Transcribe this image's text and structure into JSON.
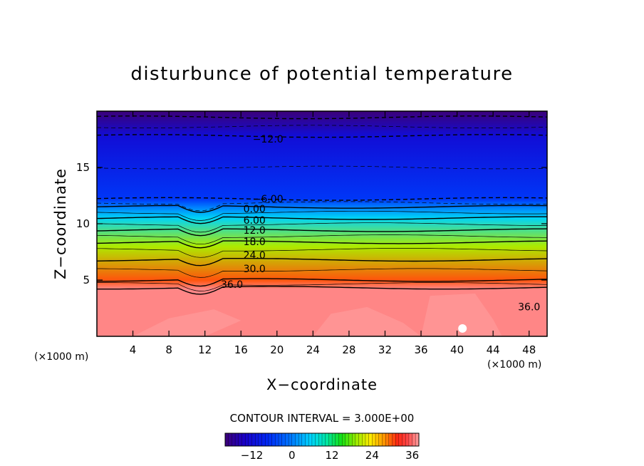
{
  "chart_data": {
    "type": "heatmap",
    "title": "disturbunce of potential temperature",
    "xlabel": "X−coordinate",
    "ylabel": "Z−coordinate",
    "x_unit": "(×1000 m)",
    "y_unit": "(×1000 m)",
    "xlim": [
      0,
      50
    ],
    "ylim": [
      0,
      20
    ],
    "x_ticks": [
      4,
      8,
      12,
      16,
      20,
      24,
      28,
      32,
      36,
      40,
      44,
      48
    ],
    "x_tick_labels": [
      "4",
      "8",
      "12",
      "16",
      "20",
      "24",
      "28",
      "32",
      "36",
      "40",
      "44",
      "48"
    ],
    "y_ticks": [
      5,
      10,
      15
    ],
    "y_tick_labels": [
      "5",
      "10",
      "15"
    ],
    "contour_interval_text": "CONTOUR INTERVAL = 3.000E+00",
    "contour_interval": 3,
    "value_range": [
      -20,
      38
    ],
    "colorbar": {
      "range": [
        -20,
        38
      ],
      "ticks": [
        -12,
        0,
        12,
        24,
        36
      ],
      "tick_labels": [
        "−12",
        "0",
        "12",
        "24",
        "36"
      ]
    },
    "vertical_profile": [
      {
        "z": 0,
        "value": 37
      },
      {
        "z": 4.2,
        "value": 37
      },
      {
        "z": 5.0,
        "value": 30
      },
      {
        "z": 8.0,
        "value": 20
      },
      {
        "z": 10.5,
        "value": 6
      },
      {
        "z": 11.5,
        "value": 0
      },
      {
        "z": 12.2,
        "value": -6
      },
      {
        "z": 17.8,
        "value": -12
      },
      {
        "z": 20,
        "value": -20
      }
    ],
    "contour_labels": [
      {
        "text": "−12.0",
        "x": 19,
        "z": 17.2
      },
      {
        "text": "−6.00",
        "x": 19,
        "z": 11.9
      },
      {
        "text": "0.00",
        "x": 17.5,
        "z": 11.0
      },
      {
        "text": "6.00",
        "x": 17.5,
        "z": 10.0
      },
      {
        "text": "12.0",
        "x": 17.5,
        "z": 9.1
      },
      {
        "text": "18.0",
        "x": 17.5,
        "z": 8.1
      },
      {
        "text": "24.0",
        "x": 17.5,
        "z": 6.9
      },
      {
        "text": "30.0",
        "x": 17.5,
        "z": 5.7
      },
      {
        "text": "36.0",
        "x": 15,
        "z": 4.3
      },
      {
        "text": "36.0",
        "x": 48,
        "z": 2.3
      }
    ]
  },
  "colors": {
    "min": "#3c0078",
    "max": "#ff9e9e"
  }
}
